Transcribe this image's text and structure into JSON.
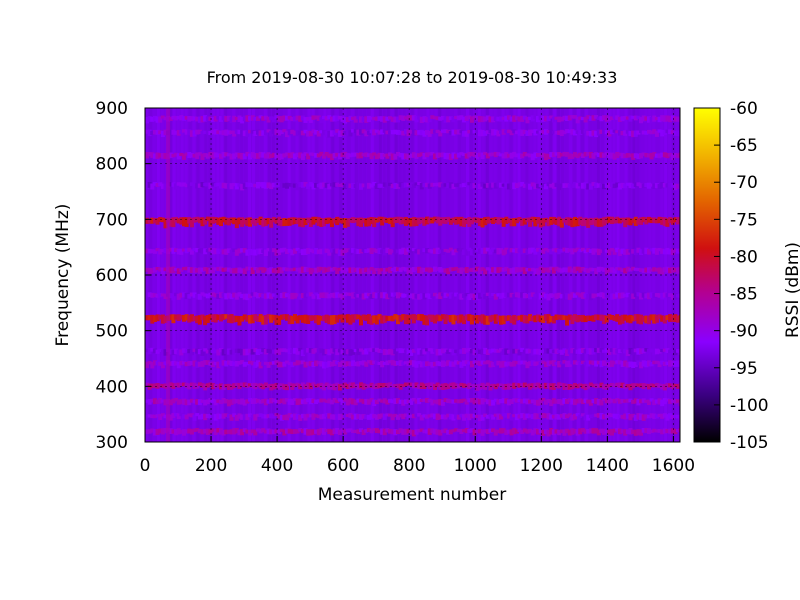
{
  "chart_data": {
    "type": "heatmap",
    "title": "From 2019-08-30 10:07:28 to 2019-08-30 10:49:33",
    "xlabel": "Measurement number",
    "ylabel": "Frequency (MHz)",
    "xlim": [
      0,
      1620
    ],
    "ylim": [
      300,
      900
    ],
    "x_ticks": [
      0,
      200,
      400,
      600,
      800,
      1000,
      1200,
      1400,
      1600
    ],
    "y_ticks": [
      300,
      400,
      500,
      600,
      700,
      800,
      900
    ],
    "grid": true,
    "colorbar": {
      "label": "RSSI (dBm)",
      "range": [
        -105,
        -60
      ],
      "ticks": [
        -60,
        -65,
        -70,
        -75,
        -80,
        -85,
        -90,
        -95,
        -100,
        -105
      ],
      "palette": [
        "#000000",
        "#3a0080",
        "#8a00ff",
        "#b40090",
        "#d01010",
        "#e36400",
        "#f2b400",
        "#ffff00"
      ]
    },
    "background_rssi_dbm": -93,
    "bands": [
      {
        "freq_mhz": 318,
        "rssi_dbm": -86
      },
      {
        "freq_mhz": 345,
        "rssi_dbm": -88
      },
      {
        "freq_mhz": 372,
        "rssi_dbm": -87
      },
      {
        "freq_mhz": 400,
        "rssi_dbm": -84
      },
      {
        "freq_mhz": 440,
        "rssi_dbm": -88
      },
      {
        "freq_mhz": 462,
        "rssi_dbm": -90
      },
      {
        "freq_mhz": 520,
        "rssi_dbm": -81
      },
      {
        "freq_mhz": 562,
        "rssi_dbm": -89
      },
      {
        "freq_mhz": 608,
        "rssi_dbm": -86
      },
      {
        "freq_mhz": 642,
        "rssi_dbm": -89
      },
      {
        "freq_mhz": 695,
        "rssi_dbm": -82
      },
      {
        "freq_mhz": 760,
        "rssi_dbm": -90
      },
      {
        "freq_mhz": 814,
        "rssi_dbm": -87
      },
      {
        "freq_mhz": 855,
        "rssi_dbm": -89
      },
      {
        "freq_mhz": 880,
        "rssi_dbm": -88
      }
    ],
    "special_column": {
      "measurement": 70,
      "rssi_dbm": -87
    }
  }
}
